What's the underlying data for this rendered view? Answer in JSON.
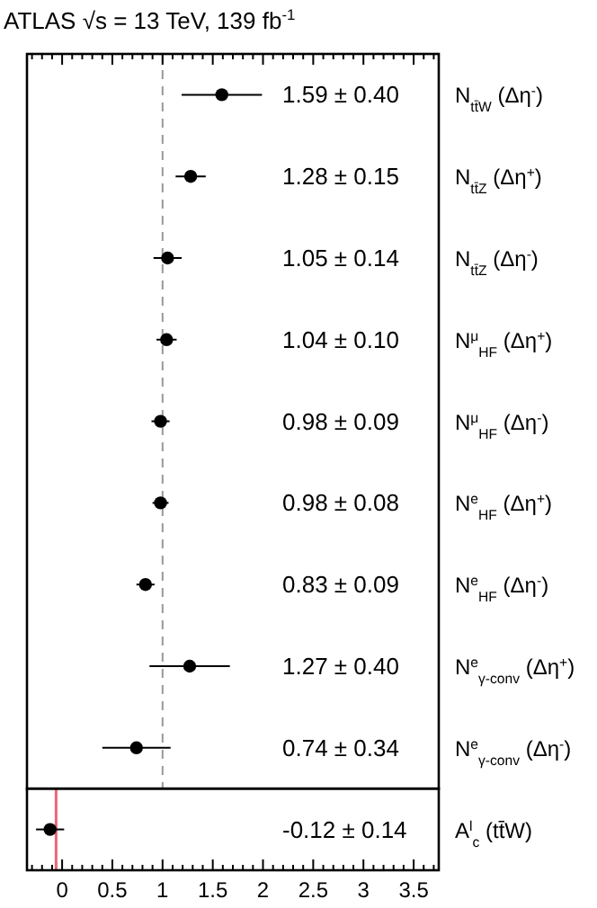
{
  "chart_data": {
    "type": "scatter",
    "orientation": "horizontal",
    "title": "ATLAS √s = 13 TeV, 139 fb$^{-1}$",
    "categories": [
      "N$_{tt̄W}$ (Δη$^{-}$)",
      "N$_{tt̄Z}$ (Δη$^{+}$)",
      "N$_{tt̄Z}$ (Δη$^{-}$)",
      "N$^{μ}$$_{HF}$ (Δη$^{+}$)",
      "N$^{μ}$$_{HF}$ (Δη$^{-}$)",
      "N$^{e}$$_{HF}$ (Δη$^{+}$)",
      "N$^{e}$$_{HF}$ (Δη$^{-}$)",
      "N$^{e}$$_{γ-conv}$ (Δη$^{+}$)",
      "N$^{e}$$_{γ-conv}$ (Δη$^{-}$)",
      "A$^{l}$$_{c}$ (tt̄W)"
    ],
    "values": [
      1.59,
      1.28,
      1.05,
      1.04,
      0.98,
      0.98,
      0.83,
      1.27,
      0.74,
      -0.12
    ],
    "errors": [
      0.4,
      0.15,
      0.14,
      0.1,
      0.09,
      0.08,
      0.09,
      0.4,
      0.34,
      0.14
    ],
    "annotations": [
      "1.59 ± 0.40",
      "1.28 ± 0.15",
      "1.05 ± 0.14",
      "1.04 ± 0.10",
      "0.98 ± 0.09",
      "0.98 ± 0.08",
      "0.83 ± 0.09",
      "1.27 ± 0.40",
      "0.74 ± 0.34",
      "-0.12 ± 0.14"
    ],
    "color": "#000000",
    "marker": "circle",
    "xlim": [
      -0.35,
      3.75
    ],
    "xticks": [
      {
        "value": -0.3,
        "label": null
      },
      {
        "value": -0.2,
        "label": null
      },
      {
        "value": -0.1,
        "label": null
      },
      0,
      {
        "value": 0.1,
        "label": null
      },
      {
        "value": 0.2,
        "label": null
      },
      {
        "value": 0.3,
        "label": null
      },
      {
        "value": 0.4,
        "label": null
      },
      0.5,
      {
        "value": 0.6,
        "label": null
      },
      {
        "value": 0.7,
        "label": null
      },
      {
        "value": 0.8,
        "label": null
      },
      {
        "value": 0.9,
        "label": null
      },
      1,
      {
        "value": 1.1,
        "label": null
      },
      {
        "value": 1.2,
        "label": null
      },
      {
        "value": 1.3,
        "label": null
      },
      {
        "value": 1.4,
        "label": null
      },
      1.5,
      {
        "value": 1.6,
        "label": null
      },
      {
        "value": 1.7,
        "label": null
      },
      {
        "value": 1.8,
        "label": null
      },
      {
        "value": 1.9,
        "label": null
      },
      2,
      {
        "value": 2.1,
        "label": null
      },
      {
        "value": 2.2,
        "label": null
      },
      {
        "value": 2.3,
        "label": null
      },
      {
        "value": 2.4,
        "label": null
      },
      2.5,
      {
        "value": 2.6,
        "label": null
      },
      {
        "value": 2.7,
        "label": null
      },
      {
        "value": 2.8,
        "label": null
      },
      {
        "value": 2.9,
        "label": null
      },
      3,
      {
        "value": 3.1,
        "label": null
      },
      {
        "value": 3.2,
        "label": null
      },
      {
        "value": 3.3,
        "label": null
      },
      {
        "value": 3.4,
        "label": null
      },
      3.5,
      {
        "value": 3.6,
        "label": null
      },
      {
        "value": 3.7,
        "label": null
      }
    ],
    "ref_lines": [
      {
        "axis": "x",
        "value": 1,
        "color": "#999999",
        "line_style": "dashed"
      },
      {
        "axis": "x",
        "value": -0.06,
        "color": "#ee6677",
        "line_style": "solid"
      }
    ]
  }
}
